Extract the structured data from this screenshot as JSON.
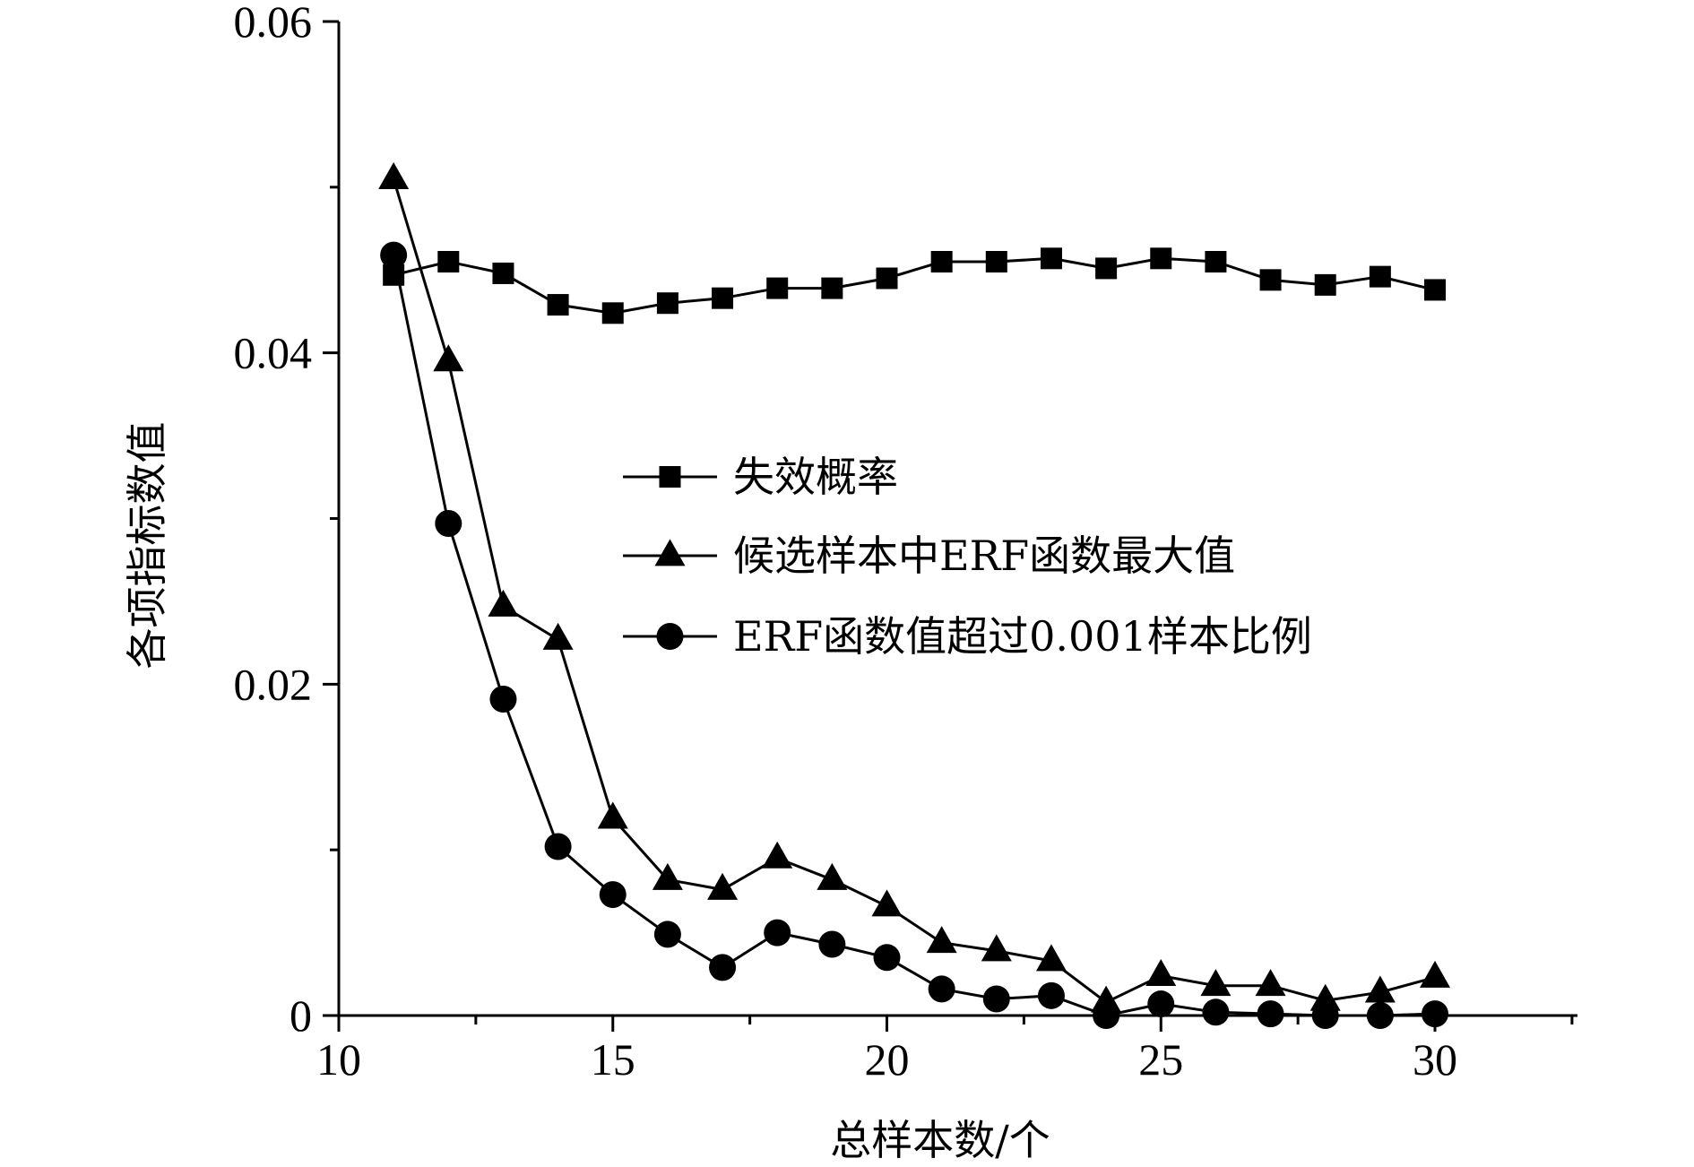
{
  "chart_data": {
    "type": "line",
    "title": "",
    "xlabel": "总样本数/个",
    "ylabel": "各项指标数值",
    "xlim": [
      10,
      32.6
    ],
    "ylim": [
      0,
      0.06
    ],
    "x_ticks": [
      {
        "value": 10,
        "label": "10"
      },
      {
        "value": 15,
        "label": "15"
      },
      {
        "value": 20,
        "label": "20"
      },
      {
        "value": 25,
        "label": "25"
      },
      {
        "value": 30,
        "label": "30"
      }
    ],
    "y_ticks": [
      {
        "value": 0,
        "label": "0"
      },
      {
        "value": 0.02,
        "label": "0.02"
      },
      {
        "value": 0.04,
        "label": "0.04"
      },
      {
        "value": 0.06,
        "label": "0.06"
      }
    ],
    "grid": false,
    "legend_position": "center-right",
    "x": [
      11,
      12,
      13,
      14,
      15,
      16,
      17,
      18,
      19,
      20,
      21,
      22,
      23,
      24,
      25,
      26,
      27,
      28,
      29,
      30
    ],
    "series": [
      {
        "name": "失效概率",
        "marker": "square",
        "values": [
          0.0447,
          0.0455,
          0.0448,
          0.0429,
          0.0424,
          0.043,
          0.0433,
          0.0439,
          0.0439,
          0.0445,
          0.0455,
          0.0455,
          0.0457,
          0.0451,
          0.0457,
          0.0455,
          0.0444,
          0.0441,
          0.0446,
          0.0438
        ]
      },
      {
        "name": "候选样本中ERF函数最大值",
        "marker": "triangle",
        "values": [
          0.0505,
          0.0395,
          0.0247,
          0.0227,
          0.0119,
          0.0082,
          0.0076,
          0.0095,
          0.0082,
          0.0066,
          0.0044,
          0.0039,
          0.0033,
          0.0008,
          0.0024,
          0.0018,
          0.0018,
          0.0009,
          0.0014,
          0.0023
        ]
      },
      {
        "name": "ERF函数值超过0.001样本比例",
        "marker": "circle",
        "values": [
          0.0459,
          0.0297,
          0.0191,
          0.0102,
          0.0073,
          0.0049,
          0.0029,
          0.005,
          0.0043,
          0.0035,
          0.0016,
          0.001,
          0.0012,
          0.0,
          0.0007,
          0.0002,
          0.0001,
          0.0,
          0.0,
          0.0001
        ]
      }
    ]
  },
  "colors": {
    "line": "#000000",
    "background": "#ffffff"
  }
}
